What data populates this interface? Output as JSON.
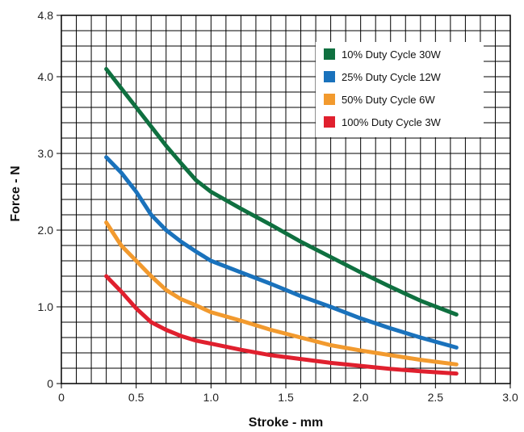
{
  "chart_data": {
    "type": "line",
    "title": "",
    "xlabel": "Stroke - mm",
    "ylabel": "Force - N",
    "xlim": [
      0,
      3.0
    ],
    "ylim": [
      0,
      4.8
    ],
    "x_ticks": [
      0,
      0.5,
      1.0,
      1.5,
      2.0,
      2.5,
      3.0
    ],
    "x_tick_labels": [
      "0",
      "0.5",
      "1.0",
      "1.5",
      "2.0",
      "2.5",
      "3.0"
    ],
    "y_ticks": [
      0,
      1.0,
      2.0,
      3.0,
      4.0,
      4.8
    ],
    "y_tick_labels": [
      "0",
      "1.0",
      "2.0",
      "3.0",
      "4.0",
      "4.8"
    ],
    "grid": true,
    "legend_position": "top-right",
    "series": [
      {
        "name": "10% Duty Cycle 30W",
        "color": "#0f7040",
        "x": [
          0.3,
          0.4,
          0.5,
          0.6,
          0.7,
          0.8,
          0.9,
          1.0,
          1.2,
          1.4,
          1.6,
          1.8,
          2.0,
          2.2,
          2.4,
          2.64
        ],
        "y": [
          4.1,
          3.85,
          3.6,
          3.35,
          3.1,
          2.87,
          2.65,
          2.5,
          2.28,
          2.07,
          1.85,
          1.65,
          1.45,
          1.26,
          1.08,
          0.9
        ]
      },
      {
        "name": "25% Duty Cycle 12W",
        "color": "#1a72bc",
        "x": [
          0.3,
          0.4,
          0.5,
          0.6,
          0.7,
          0.8,
          0.9,
          1.0,
          1.2,
          1.4,
          1.6,
          1.8,
          2.0,
          2.2,
          2.4,
          2.64
        ],
        "y": [
          2.95,
          2.75,
          2.5,
          2.2,
          2.0,
          1.85,
          1.72,
          1.6,
          1.45,
          1.3,
          1.14,
          1.0,
          0.85,
          0.72,
          0.6,
          0.47
        ]
      },
      {
        "name": "50% Duty Cycle 6W",
        "color": "#f29a2e",
        "x": [
          0.3,
          0.4,
          0.5,
          0.6,
          0.7,
          0.8,
          0.9,
          1.0,
          1.2,
          1.4,
          1.6,
          1.8,
          2.0,
          2.2,
          2.4,
          2.64
        ],
        "y": [
          2.1,
          1.8,
          1.6,
          1.4,
          1.22,
          1.1,
          1.02,
          0.93,
          0.82,
          0.7,
          0.6,
          0.5,
          0.43,
          0.37,
          0.31,
          0.25
        ]
      },
      {
        "name": "100% Duty Cycle 3W",
        "color": "#e0202e",
        "x": [
          0.3,
          0.4,
          0.5,
          0.6,
          0.7,
          0.8,
          0.9,
          1.0,
          1.2,
          1.4,
          1.6,
          1.8,
          2.0,
          2.2,
          2.4,
          2.64
        ],
        "y": [
          1.4,
          1.2,
          0.98,
          0.8,
          0.7,
          0.62,
          0.56,
          0.52,
          0.44,
          0.37,
          0.32,
          0.27,
          0.23,
          0.19,
          0.16,
          0.13
        ]
      }
    ]
  }
}
